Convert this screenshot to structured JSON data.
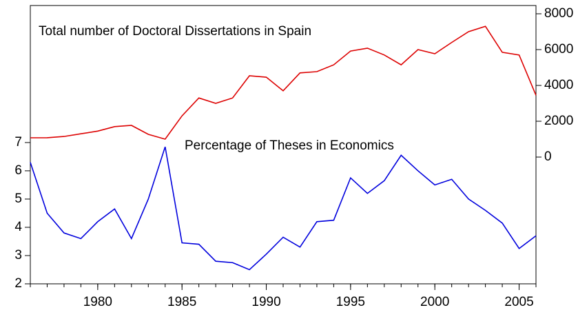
{
  "chart_data": {
    "type": "line",
    "annotations": [
      "Total number of Doctoral Dissertations in Spain",
      "Percentage of Theses in Economics"
    ],
    "x": [
      1976,
      1977,
      1978,
      1979,
      1980,
      1981,
      1982,
      1983,
      1984,
      1985,
      1986,
      1987,
      1988,
      1989,
      1990,
      1991,
      1992,
      1993,
      1994,
      1995,
      1996,
      1997,
      1998,
      1999,
      2000,
      2001,
      2002,
      2003,
      2004,
      2005,
      2006
    ],
    "series": [
      {
        "name": "Percentage of Theses in Economics",
        "color": "#0000dd",
        "axis": "y",
        "values": [
          6.3,
          4.5,
          3.8,
          3.6,
          4.2,
          4.65,
          3.6,
          5.0,
          6.85,
          3.45,
          3.4,
          2.8,
          2.75,
          2.5,
          3.05,
          3.65,
          3.3,
          4.2,
          4.25,
          5.75,
          5.2,
          5.65,
          6.55,
          6.0,
          5.5,
          5.7,
          5.0,
          4.6,
          4.15,
          3.25,
          3.7
        ]
      },
      {
        "name": "Total number of Doctoral Dissertations in Spain",
        "color": "#dd0000",
        "axis": "y2",
        "values": [
          1077,
          1080,
          1150,
          1300,
          1450,
          1700,
          1770,
          1270,
          1000,
          2300,
          3300,
          3000,
          3300,
          4540,
          4460,
          3700,
          4700,
          4770,
          5150,
          5920,
          6080,
          5700,
          5150,
          6000,
          5770,
          6400,
          7000,
          7300,
          5850,
          5700,
          3450
        ]
      }
    ],
    "xlim": [
      1976,
      2006
    ],
    "xticks": [
      1980,
      1985,
      1990,
      1995,
      2000,
      2005
    ],
    "ylim": [
      2,
      11.85
    ],
    "yticks": [
      2,
      3,
      4,
      5,
      6,
      7
    ],
    "y2lim": [
      -7077,
      8462
    ],
    "y2ticks": [
      0,
      2000,
      4000,
      6000,
      8000
    ]
  }
}
